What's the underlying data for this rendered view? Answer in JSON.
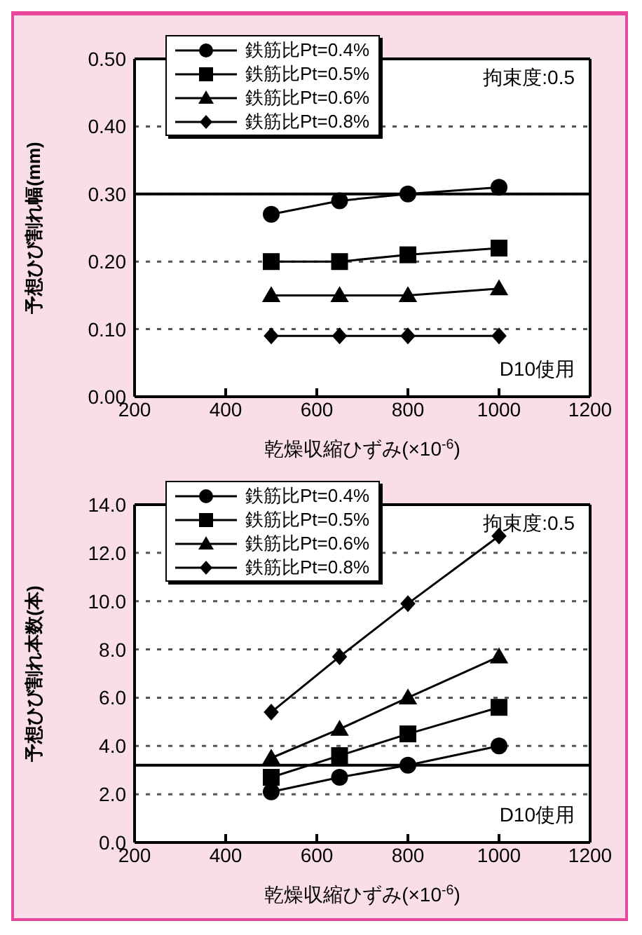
{
  "chart_data": [
    {
      "type": "line",
      "ylabel": "予想ひび割れ幅(mm)",
      "xlabel": "乾燥収縮ひずみ(×10$^{-6}$)",
      "x": [
        500,
        650,
        800,
        1000
      ],
      "xlim": [
        200,
        1200
      ],
      "xticks": [
        200,
        400,
        600,
        800,
        1000,
        1200
      ],
      "ylim": [
        0,
        0.5
      ],
      "yticks": [
        {
          "value": 0,
          "label": "0.00"
        },
        {
          "value": 0.1,
          "label": "0.10"
        },
        {
          "value": 0.2,
          "label": "0.20"
        },
        {
          "value": 0.3,
          "label": "0.30"
        },
        {
          "value": 0.4,
          "label": "0.40"
        },
        {
          "value": 0.5,
          "label": "0.50"
        }
      ],
      "grid": "y",
      "legend": "top left",
      "line_style": "solid",
      "annotations": [
        "拘束度:0.5",
        "D10使用"
      ],
      "ref_lines": [
        {
          "axis": "y",
          "value": 0.3,
          "color": "#000000"
        }
      ],
      "series": [
        {
          "name": "鉄筋比Pt=0.4%",
          "color": "#000000",
          "marker": "circle",
          "values": [
            0.27,
            0.29,
            0.3,
            0.31
          ]
        },
        {
          "name": "鉄筋比Pt=0.5%",
          "color": "#000000",
          "marker": "square",
          "values": [
            0.2,
            0.2,
            0.21,
            0.22
          ]
        },
        {
          "name": "鉄筋比Pt=0.6%",
          "color": "#000000",
          "marker": "triangle",
          "values": [
            0.15,
            0.15,
            0.15,
            0.16
          ]
        },
        {
          "name": "鉄筋比Pt=0.8%",
          "color": "#000000",
          "marker": "diamond",
          "values": [
            0.09,
            0.09,
            0.09,
            0.09
          ]
        }
      ]
    },
    {
      "type": "line",
      "ylabel": "予想ひび割れ本数(本)",
      "xlabel": "乾燥収縮ひずみ(×10$^{-6}$)",
      "x": [
        500,
        650,
        800,
        1000
      ],
      "xlim": [
        200,
        1200
      ],
      "xticks": [
        200,
        400,
        600,
        800,
        1000,
        1200
      ],
      "ylim": [
        0,
        14
      ],
      "yticks": [
        {
          "value": 0,
          "label": "0.0"
        },
        {
          "value": 2,
          "label": "2.0"
        },
        {
          "value": 4,
          "label": "4.0"
        },
        {
          "value": 6,
          "label": "6.0"
        },
        {
          "value": 8,
          "label": "8.0"
        },
        {
          "value": 10,
          "label": "10.0"
        },
        {
          "value": 12,
          "label": "12.0"
        },
        {
          "value": 14,
          "label": "14.0"
        }
      ],
      "grid": "y",
      "legend": "top left",
      "line_style": "solid",
      "annotations": [
        "拘束度:0.5",
        "D10使用"
      ],
      "ref_lines": [
        {
          "axis": "y",
          "value": 3.2,
          "color": "#000000"
        }
      ],
      "series": [
        {
          "name": "鉄筋比Pt=0.4%",
          "color": "#000000",
          "marker": "circle",
          "values": [
            2.1,
            2.7,
            3.2,
            4.0
          ]
        },
        {
          "name": "鉄筋比Pt=0.5%",
          "color": "#000000",
          "marker": "square",
          "values": [
            2.7,
            3.6,
            4.5,
            5.6
          ]
        },
        {
          "name": "鉄筋比Pt=0.6%",
          "color": "#000000",
          "marker": "triangle",
          "values": [
            3.5,
            4.7,
            6.0,
            7.7
          ]
        },
        {
          "name": "鉄筋比Pt=0.8%",
          "color": "#000000",
          "marker": "diamond",
          "values": [
            5.4,
            7.7,
            9.9,
            12.7
          ]
        }
      ]
    }
  ]
}
